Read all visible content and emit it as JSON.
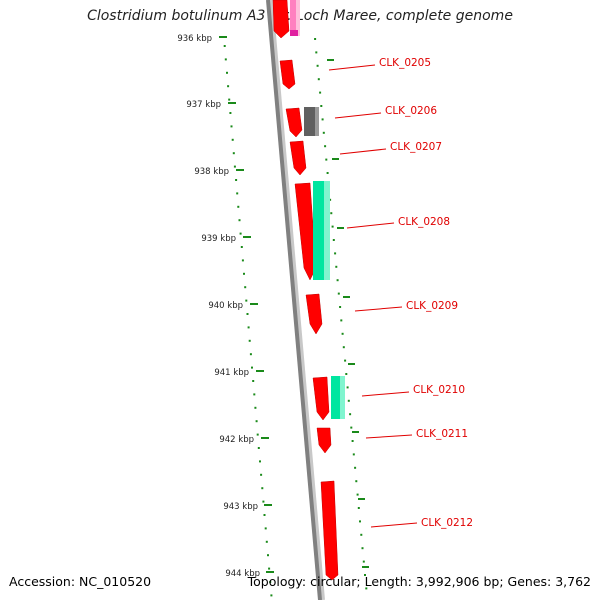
{
  "title": "Clostridium botulinum A3 str. Loch Maree, complete genome",
  "footer": {
    "accession": "Accession: NC_010520",
    "stats": "Topology: circular; Length: 3,992,906 bp; Genes: 3,762"
  },
  "axis": {
    "ticks": [
      "936 kbp",
      "937 kbp",
      "938 kbp",
      "939 kbp",
      "940 kbp",
      "941 kbp",
      "942 kbp",
      "943 kbp",
      "944 kbp"
    ]
  },
  "genes": [
    {
      "name": "CLK_0205"
    },
    {
      "name": "CLK_0206"
    },
    {
      "name": "CLK_0207"
    },
    {
      "name": "CLK_0208"
    },
    {
      "name": "CLK_0209"
    },
    {
      "name": "CLK_0210"
    },
    {
      "name": "CLK_0211"
    },
    {
      "name": "CLK_0212"
    }
  ],
  "colors": {
    "gene": "#ff0000",
    "gene_dark": "#c40000",
    "feature_green": "#00e6a0",
    "feature_gray": "#606060",
    "feature_pink": "#ff80c0",
    "backbone": "#808080",
    "dots": "#1a8a1a",
    "label": "#e00000"
  }
}
